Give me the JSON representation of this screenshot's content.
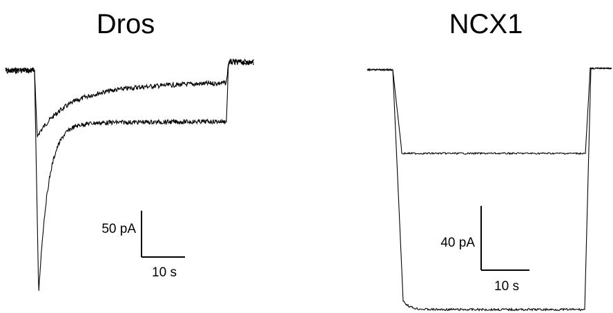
{
  "chart_data": [
    {
      "type": "line",
      "title": "Dros",
      "scale_bars": {
        "current": "50 pA",
        "time": "10 s"
      },
      "traces": 2
    },
    {
      "type": "line",
      "title": "NCX1",
      "scale_bars": {
        "current": "40 pA",
        "time": "10 s"
      },
      "traces": 2
    }
  ],
  "colors": {
    "trace": "#000000",
    "background": "#ffffff"
  }
}
